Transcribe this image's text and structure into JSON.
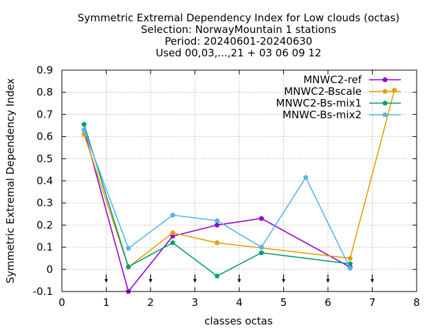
{
  "chart_data": {
    "type": "line",
    "title_lines": [
      "Symmetric Extremal Dependency Index  for Low clouds (octas)",
      "Selection: NorwayMountain      1 stations",
      "Period: 20240601-20240630",
      "Used 00,03,...,21 + 03 06 09 12"
    ],
    "xlabel": "classes octas",
    "ylabel": "Symmetric Extremal Dependency Index",
    "xlim": [
      0,
      8
    ],
    "ylim": [
      -0.1,
      0.9
    ],
    "xticks": [
      "0",
      "1",
      "2",
      "3",
      "4",
      "5",
      "6",
      "7",
      "8"
    ],
    "yticks": [
      "-0.1",
      "0",
      "0.1",
      "0.2",
      "0.3",
      "0.4",
      "0.5",
      "0.6",
      "0.7",
      "0.8",
      "0.9"
    ],
    "grid": true,
    "legend_position": "top-right",
    "threshold_markers_x": [
      1,
      2,
      3,
      4,
      5,
      6,
      7
    ],
    "series": [
      {
        "name": "MNWC2-ref",
        "color": "#9400d3",
        "marker": "filled-pentagon",
        "x": [
          0.5,
          1.5,
          2.5,
          3.5,
          4.5,
          6.5
        ],
        "y": [
          0.63,
          -0.1,
          0.15,
          0.2,
          0.23,
          0.01
        ]
      },
      {
        "name": "MNWC2-Bscale",
        "color": "#e69f00",
        "marker": "filled-pentagon",
        "x": [
          0.5,
          1.5,
          2.5,
          3.5,
          6.5,
          7.5
        ],
        "y": [
          0.61,
          0.01,
          0.165,
          0.12,
          0.05,
          0.81
        ]
      },
      {
        "name": "MNWC2-Bs-mix1",
        "color": "#009e73",
        "marker": "filled-pentagon",
        "x": [
          0.5,
          1.5,
          2.5,
          3.5,
          4.5,
          6.5
        ],
        "y": [
          0.655,
          0.012,
          0.12,
          -0.03,
          0.075,
          0.025
        ]
      },
      {
        "name": "MNWC-Bs-mix2",
        "color": "#56b4e9",
        "marker": "filled-pentagon",
        "x": [
          0.5,
          1.5,
          2.5,
          3.5,
          4.5,
          5.5,
          6.5
        ],
        "y": [
          0.63,
          0.095,
          0.245,
          0.22,
          0.1,
          0.415,
          0.005
        ]
      }
    ]
  }
}
